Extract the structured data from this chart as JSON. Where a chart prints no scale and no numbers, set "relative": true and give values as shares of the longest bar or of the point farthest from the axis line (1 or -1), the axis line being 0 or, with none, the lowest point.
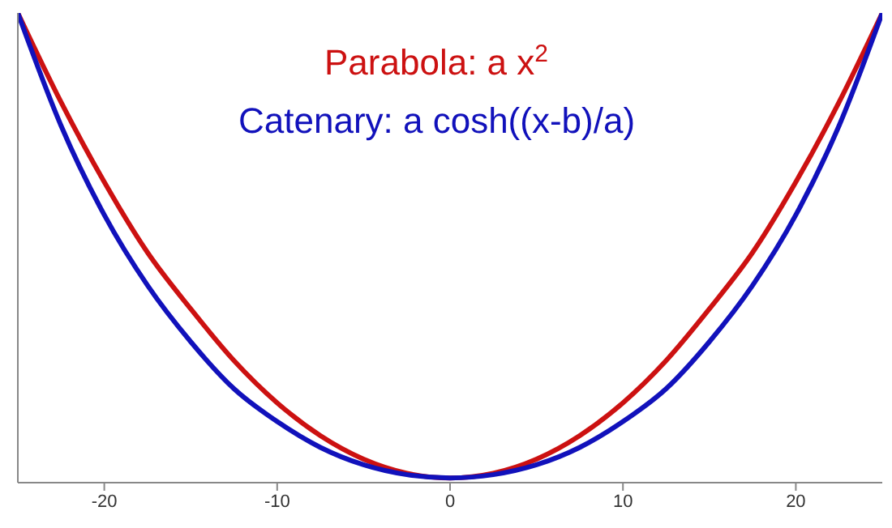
{
  "chart_data": {
    "type": "line",
    "relative": true,
    "x": [
      -25,
      -22.5,
      -20,
      -17.5,
      -15,
      -12.5,
      -10,
      -7.5,
      -5,
      -2.5,
      0,
      2.5,
      5,
      7.5,
      10,
      12.5,
      15,
      17.5,
      20,
      22.5,
      25
    ],
    "xlim": [
      -25,
      25
    ],
    "xticks": [
      -20,
      -10,
      0,
      10,
      20
    ],
    "tick_labels": "x",
    "marker": "none",
    "line_style": "solid",
    "series": [
      {
        "name": "Parabola: a x$^{2}$",
        "color": "#cc1111",
        "values": [
          1,
          0.81,
          0.64,
          0.49,
          0.37,
          0.26,
          0.17,
          0.1,
          0.05,
          0.02,
          0.01,
          0.02,
          0.05,
          0.1,
          0.17,
          0.26,
          0.37,
          0.49,
          0.64,
          0.81,
          1
        ]
      },
      {
        "name": "Catenary: a cosh((x-b)/a)",
        "color": "#1111bb",
        "values": [
          1,
          0.76,
          0.57,
          0.42,
          0.3,
          0.2,
          0.13,
          0.075,
          0.038,
          0.017,
          0.01,
          0.017,
          0.038,
          0.075,
          0.13,
          0.2,
          0.3,
          0.42,
          0.57,
          0.76,
          1
        ]
      }
    ]
  }
}
